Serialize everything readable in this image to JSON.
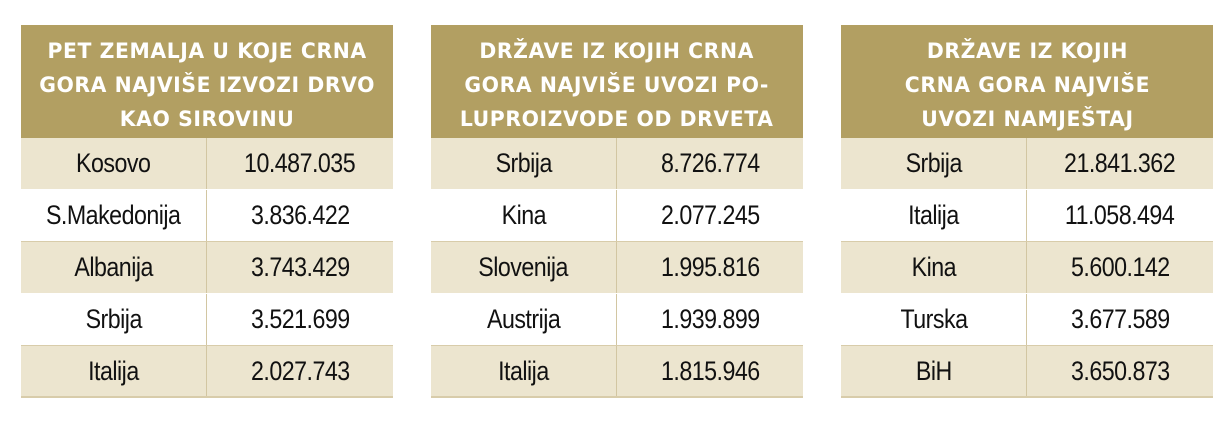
{
  "tables": [
    {
      "title": "PET ZEMALJA U KOJE CRNA\nGORA NAJVIŠE IZVOZI DRVO\nKAO SIROVINU",
      "rows": [
        {
          "country": "Kosovo",
          "value": "10.487.035"
        },
        {
          "country": "S.Makedonija",
          "value": "3.836.422"
        },
        {
          "country": "Albanija",
          "value": "3.743.429"
        },
        {
          "country": "Srbija",
          "value": "3.521.699"
        },
        {
          "country": "Italija",
          "value": "2.027.743"
        }
      ]
    },
    {
      "title": "DRŽAVE IZ KOJIH CRNA\nGORA NAJVIŠE UVOZI PO-\nLUPROIZVODE OD DRVETA",
      "rows": [
        {
          "country": "Srbija",
          "value": "8.726.774"
        },
        {
          "country": "Kina",
          "value": "2.077.245"
        },
        {
          "country": "Slovenija",
          "value": "1.995.816"
        },
        {
          "country": "Austrija",
          "value": "1.939.899"
        },
        {
          "country": "Italija",
          "value": "1.815.946"
        }
      ]
    },
    {
      "title": "DRŽAVE IZ KOJIH\nCRNA GORA NAJVIŠE\nUVOZI NAMJEŠTAJ",
      "rows": [
        {
          "country": "Srbija",
          "value": "21.841.362"
        },
        {
          "country": "Italija",
          "value": "11.058.494"
        },
        {
          "country": "Kina",
          "value": "5.600.142"
        },
        {
          "country": "Turska",
          "value": "3.677.589"
        },
        {
          "country": "BiH",
          "value": "3.650.873"
        }
      ]
    }
  ],
  "colors": {
    "header_bg": "#b29f62",
    "header_text": "#ffffff",
    "shaded_row": "#ece5cf",
    "plain_row": "#ffffff"
  }
}
